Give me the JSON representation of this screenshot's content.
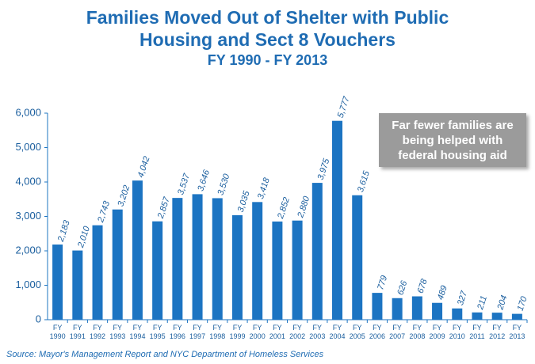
{
  "chart_data": {
    "type": "bar",
    "title": "Families Moved Out of Shelter with Public Housing and Sect 8 Vouchers",
    "subtitle": "FY 1990 - FY 2013",
    "categories": [
      "FY 1990",
      "FY 1991",
      "FY 1992",
      "FY 1993",
      "FY 1994",
      "FY 1995",
      "FY 1996",
      "FY 1997",
      "FY 1998",
      "FY 1999",
      "FY 2000",
      "FY 2001",
      "FY 2002",
      "FY 2003",
      "FY 2004",
      "FY 2005",
      "FY 2006",
      "FY 2007",
      "FY 2008",
      "FY 2009",
      "FY 2010",
      "FY 2011",
      "FY 2012",
      "FY 2013"
    ],
    "values": [
      2183,
      2010,
      2743,
      3202,
      4042,
      2857,
      3537,
      3646,
      3530,
      3035,
      3418,
      2852,
      2880,
      3975,
      5777,
      3615,
      779,
      626,
      678,
      489,
      327,
      211,
      204,
      170
    ],
    "value_labels": [
      "2,183",
      "2,010",
      "2,743",
      "3,202",
      "4,042",
      "2,857",
      "3,537",
      "3,646",
      "3,530",
      "3,035",
      "3,418",
      "2,852",
      "2,880",
      "3,975",
      "5,777",
      "3,615",
      "779",
      "626",
      "678",
      "489",
      "327",
      "211",
      "204",
      "170"
    ],
    "color": "#1c74c2",
    "ylim": [
      0,
      6000
    ],
    "yticks": [
      0,
      {
        "value": 1000,
        "label": "1,000"
      },
      {
        "value": 2000,
        "label": "2,000"
      },
      {
        "value": 3000,
        "label": "3,000"
      },
      {
        "value": 4000,
        "label": "4,000"
      },
      {
        "value": 5000,
        "label": "5,000"
      },
      {
        "value": 6000,
        "label": "6,000"
      }
    ],
    "grid": false,
    "annotation": "Far fewer families are being helped with federal housing aid",
    "source": "Source:  Mayor's Management Report and NYC Department of Homeless Services"
  }
}
